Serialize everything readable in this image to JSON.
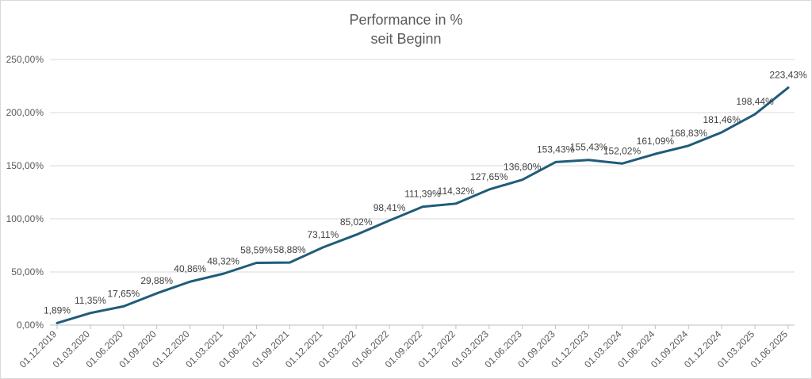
{
  "chart_data": {
    "type": "line",
    "title": "Performance in %",
    "subtitle": "seit Beginn",
    "xlabel": "",
    "ylabel": "",
    "ylim": [
      0,
      250
    ],
    "y_ticks": [
      "0,00%",
      "50,00%",
      "100,00%",
      "150,00%",
      "200,00%",
      "250,00%"
    ],
    "grid": true,
    "legend": "none",
    "line_color": "#1f5c7a",
    "categories": [
      "01.12.2019",
      "01.03.2020",
      "01.06.2020",
      "01.09.2020",
      "01.12.2020",
      "01.03.2021",
      "01.06.2021",
      "01.09.2021",
      "01.12.2021",
      "01.03.2022",
      "01.06.2022",
      "01.09.2022",
      "01.12.2022",
      "01.03.2023",
      "01.06.2023",
      "01.09.2023",
      "01.12.2023",
      "01.03.2024",
      "01.06.2024",
      "01.09.2024",
      "01.12.2024",
      "01.03.2025",
      "01.06.2025"
    ],
    "values": [
      1.89,
      11.35,
      17.65,
      29.88,
      40.86,
      48.32,
      58.59,
      58.88,
      73.11,
      85.02,
      98.41,
      111.39,
      114.32,
      127.65,
      136.8,
      153.43,
      155.43,
      152.02,
      161.09,
      168.83,
      181.46,
      198.44,
      223.43
    ],
    "data_labels": [
      "1,89%",
      "11,35%",
      "17,65%",
      "29,88%",
      "40,86%",
      "48,32%",
      "58,59%",
      "58,88%",
      "73,11%",
      "85,02%",
      "98,41%",
      "111,39%",
      "114,32%",
      "127,65%",
      "136,80%",
      "153,43%",
      "155,43%",
      "152,02%",
      "161,09%",
      "168,83%",
      "181,46%",
      "198,44%",
      "223,43%"
    ]
  }
}
